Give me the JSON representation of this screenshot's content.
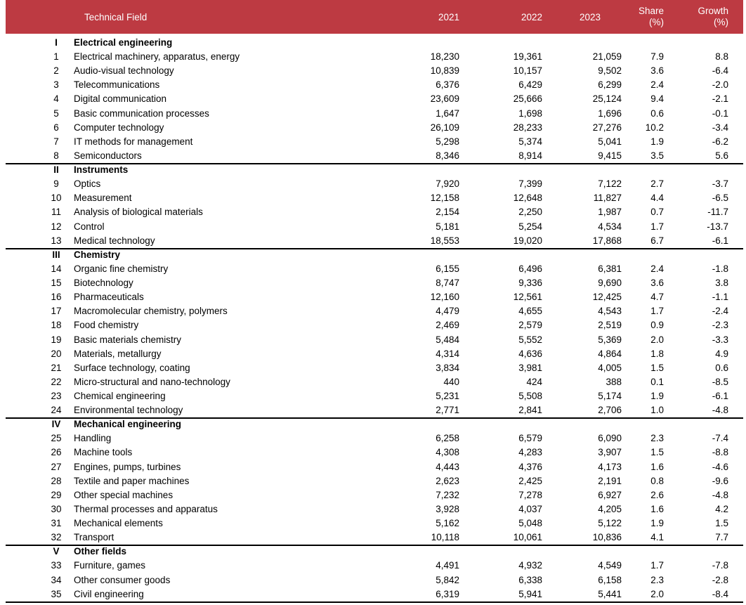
{
  "header": {
    "field": "Technical Field",
    "y2021": "2021",
    "y2022": "2022",
    "y2023": "2023",
    "share": [
      "Share",
      "(%)"
    ],
    "growth": [
      "Growth",
      "(%)"
    ]
  },
  "sections": [
    {
      "numeral": "I",
      "title": "Electrical engineering",
      "rows": [
        [
          "1",
          "Electrical machinery, apparatus, energy",
          "18,230",
          "19,361",
          "21,059",
          "7.9",
          "8.8"
        ],
        [
          "2",
          "Audio-visual technology",
          "10,839",
          "10,157",
          "9,502",
          "3.6",
          "-6.4"
        ],
        [
          "3",
          "Telecommunications",
          "6,376",
          "6,429",
          "6,299",
          "2.4",
          "-2.0"
        ],
        [
          "4",
          "Digital communication",
          "23,609",
          "25,666",
          "25,124",
          "9.4",
          "-2.1"
        ],
        [
          "5",
          "Basic communication processes",
          "1,647",
          "1,698",
          "1,696",
          "0.6",
          "-0.1"
        ],
        [
          "6",
          "Computer technology",
          "26,109",
          "28,233",
          "27,276",
          "10.2",
          "-3.4"
        ],
        [
          "7",
          "IT methods for management",
          "5,298",
          "5,374",
          "5,041",
          "1.9",
          "-6.2"
        ],
        [
          "8",
          "Semiconductors",
          "8,346",
          "8,914",
          "9,415",
          "3.5",
          "5.6"
        ]
      ]
    },
    {
      "numeral": "II",
      "title": "Instruments",
      "rows": [
        [
          "9",
          "Optics",
          "7,920",
          "7,399",
          "7,122",
          "2.7",
          "-3.7"
        ],
        [
          "10",
          "Measurement",
          "12,158",
          "12,648",
          "11,827",
          "4.4",
          "-6.5"
        ],
        [
          "11",
          "Analysis of biological materials",
          "2,154",
          "2,250",
          "1,987",
          "0.7",
          "-11.7"
        ],
        [
          "12",
          "Control",
          "5,181",
          "5,254",
          "4,534",
          "1.7",
          "-13.7"
        ],
        [
          "13",
          "Medical technology",
          "18,553",
          "19,020",
          "17,868",
          "6.7",
          "-6.1"
        ]
      ]
    },
    {
      "numeral": "III",
      "title": "Chemistry",
      "rows": [
        [
          "14",
          "Organic fine chemistry",
          "6,155",
          "6,496",
          "6,381",
          "2.4",
          "-1.8"
        ],
        [
          "15",
          "Biotechnology",
          "8,747",
          "9,336",
          "9,690",
          "3.6",
          "3.8"
        ],
        [
          "16",
          "Pharmaceuticals",
          "12,160",
          "12,561",
          "12,425",
          "4.7",
          "-1.1"
        ],
        [
          "17",
          "Macromolecular chemistry, polymers",
          "4,479",
          "4,655",
          "4,543",
          "1.7",
          "-2.4"
        ],
        [
          "18",
          "Food chemistry",
          "2,469",
          "2,579",
          "2,519",
          "0.9",
          "-2.3"
        ],
        [
          "19",
          "Basic materials chemistry",
          "5,484",
          "5,552",
          "5,369",
          "2.0",
          "-3.3"
        ],
        [
          "20",
          "Materials, metallurgy",
          "4,314",
          "4,636",
          "4,864",
          "1.8",
          "4.9"
        ],
        [
          "21",
          "Surface technology, coating",
          "3,834",
          "3,981",
          "4,005",
          "1.5",
          "0.6"
        ],
        [
          "22",
          "Micro-structural and nano-technology",
          "440",
          "424",
          "388",
          "0.1",
          "-8.5"
        ],
        [
          "23",
          "Chemical engineering",
          "5,231",
          "5,508",
          "5,174",
          "1.9",
          "-6.1"
        ],
        [
          "24",
          "Environmental technology",
          "2,771",
          "2,841",
          "2,706",
          "1.0",
          "-4.8"
        ]
      ]
    },
    {
      "numeral": "IV",
      "title": "Mechanical engineering",
      "rows": [
        [
          "25",
          "Handling",
          "6,258",
          "6,579",
          "6,090",
          "2.3",
          "-7.4"
        ],
        [
          "26",
          "Machine tools",
          "4,308",
          "4,283",
          "3,907",
          "1.5",
          "-8.8"
        ],
        [
          "27",
          "Engines, pumps, turbines",
          "4,443",
          "4,376",
          "4,173",
          "1.6",
          "-4.6"
        ],
        [
          "28",
          "Textile and paper machines",
          "2,623",
          "2,425",
          "2,191",
          "0.8",
          "-9.6"
        ],
        [
          "29",
          "Other special machines",
          "7,232",
          "7,278",
          "6,927",
          "2.6",
          "-4.8"
        ],
        [
          "30",
          "Thermal processes and apparatus",
          "3,928",
          "4,037",
          "4,205",
          "1.6",
          "4.2"
        ],
        [
          "31",
          "Mechanical elements",
          "5,162",
          "5,048",
          "5,122",
          "1.9",
          "1.5"
        ],
        [
          "32",
          "Transport",
          "10,118",
          "10,061",
          "10,836",
          "4.1",
          "7.7"
        ]
      ]
    },
    {
      "numeral": "V",
      "title": "Other fields",
      "rows": [
        [
          "33",
          "Furniture, games",
          "4,491",
          "4,932",
          "4,549",
          "1.7",
          "-7.8"
        ],
        [
          "34",
          "Other consumer goods",
          "5,842",
          "6,338",
          "6,158",
          "2.3",
          "-2.8"
        ],
        [
          "35",
          "Civil engineering",
          "6,319",
          "5,941",
          "5,441",
          "2.0",
          "-8.4"
        ]
      ]
    }
  ]
}
